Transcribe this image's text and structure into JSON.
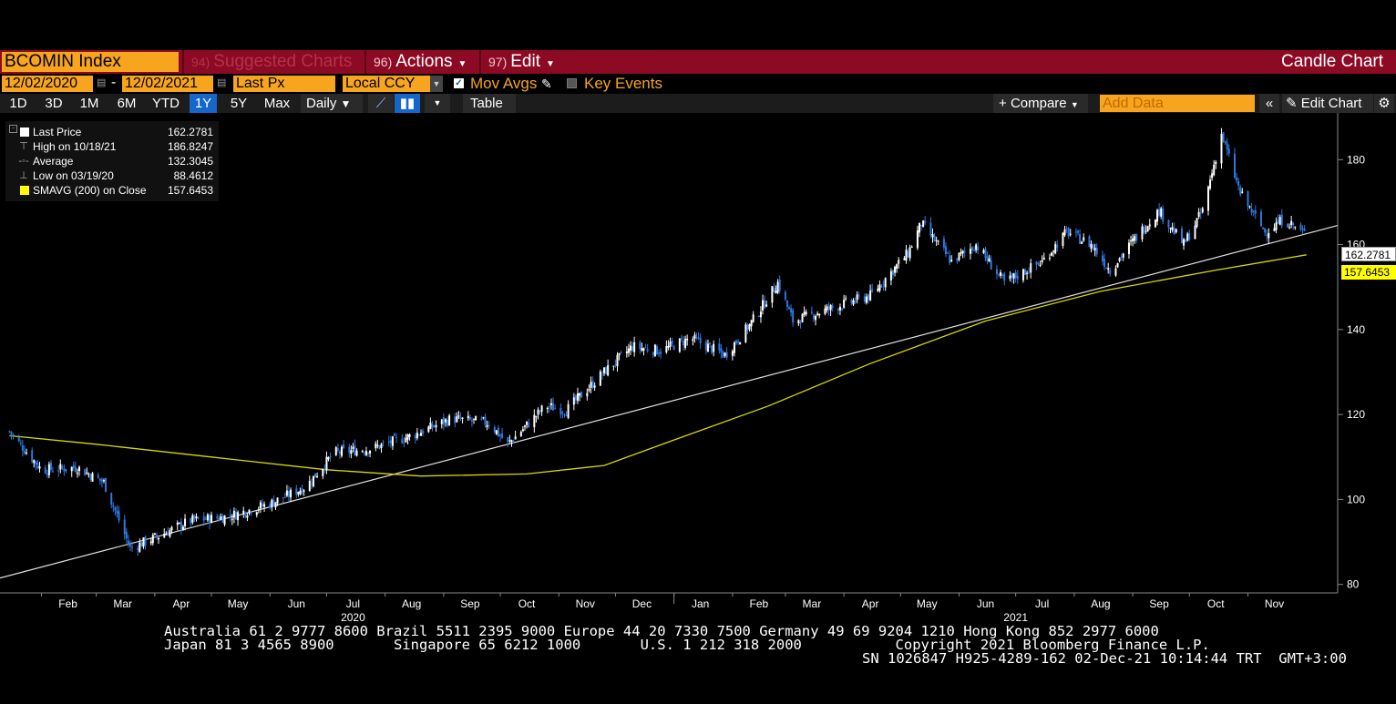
{
  "title_bar": {
    "ticker": "BCOMIN Index",
    "suggested": {
      "num": "94)",
      "label": "Suggested Charts"
    },
    "actions": {
      "num": "96)",
      "label": "Actions"
    },
    "edit": {
      "num": "97)",
      "label": "Edit"
    },
    "chart_type": "Candle Chart"
  },
  "controls": {
    "start_date": "12/02/2020",
    "date_sep": "-",
    "end_date": "12/02/2021",
    "price_field": "Last Px",
    "currency": "Local CCY",
    "mov_avgs_label": "Mov Avgs",
    "mov_avgs_checked": true,
    "key_events_label": "Key Events",
    "key_events_checked": false
  },
  "toolbar": {
    "periods": [
      "1D",
      "3D",
      "1M",
      "6M",
      "YTD",
      "1Y",
      "5Y",
      "Max"
    ],
    "active_period": "1Y",
    "frequency": "Daily",
    "table_label": "Table",
    "compare_label": "Compare",
    "add_data_placeholder": "Add Data",
    "edit_chart_label": "Edit Chart"
  },
  "legend": [
    {
      "label": "Last Price",
      "value": "162.2781",
      "color": "#ffffff"
    },
    {
      "label": "High on 10/18/21",
      "value": "186.8247",
      "symbol": "⊤"
    },
    {
      "label": "Average",
      "value": "132.3045",
      "symbol": "-◦-"
    },
    {
      "label": "Low on 03/19/20",
      "value": "88.4612",
      "symbol": "⊥"
    },
    {
      "label": "SMAVG (200)  on Close",
      "value": "157.6453",
      "color": "#ffff00"
    }
  ],
  "price_tags": {
    "last": "162.2781",
    "sma": "157.6453"
  },
  "colors": {
    "title_bar": "#8c0a23",
    "orange": "#f7a41f",
    "active_blue": "#1567c9",
    "candle_up": "#ffffff",
    "candle_down": "#2f78e0",
    "sma": "#d9d900"
  },
  "chart_data": {
    "type": "candlestick",
    "y_ticks": [
      80,
      100,
      120,
      140,
      160,
      180
    ],
    "ylim": [
      78,
      191
    ],
    "x_months": [
      "Feb",
      "Mar",
      "Apr",
      "May",
      "Jun",
      "Jul",
      "Aug",
      "Sep",
      "Oct",
      "Nov",
      "Dec",
      "Jan",
      "Feb",
      "Mar",
      "Apr",
      "May",
      "Jun",
      "Jul",
      "Aug",
      "Sep",
      "Oct",
      "Nov"
    ],
    "x_years": [
      "2020",
      "2021"
    ],
    "x_year_under": [
      "Jul",
      "Jul"
    ],
    "close_series": [
      {
        "date": "2020-01-15",
        "value": 116
      },
      {
        "date": "2020-02-01",
        "value": 107
      },
      {
        "date": "2020-02-20",
        "value": 107.5
      },
      {
        "date": "2020-03-05",
        "value": 104
      },
      {
        "date": "2020-03-19",
        "value": 88.5
      },
      {
        "date": "2020-04-01",
        "value": 91
      },
      {
        "date": "2020-04-20",
        "value": 95
      },
      {
        "date": "2020-05-10",
        "value": 96
      },
      {
        "date": "2020-06-01",
        "value": 99
      },
      {
        "date": "2020-06-20",
        "value": 103
      },
      {
        "date": "2020-07-05",
        "value": 111
      },
      {
        "date": "2020-07-25",
        "value": 112
      },
      {
        "date": "2020-08-15",
        "value": 115
      },
      {
        "date": "2020-09-05",
        "value": 119
      },
      {
        "date": "2020-09-25",
        "value": 118
      },
      {
        "date": "2020-10-05",
        "value": 113
      },
      {
        "date": "2020-10-25",
        "value": 122
      },
      {
        "date": "2020-11-05",
        "value": 121
      },
      {
        "date": "2020-11-25",
        "value": 130
      },
      {
        "date": "2020-12-10",
        "value": 136
      },
      {
        "date": "2020-12-25",
        "value": 135
      },
      {
        "date": "2021-01-10",
        "value": 138
      },
      {
        "date": "2021-01-28",
        "value": 134
      },
      {
        "date": "2021-02-10",
        "value": 141
      },
      {
        "date": "2021-02-25",
        "value": 151
      },
      {
        "date": "2021-03-05",
        "value": 142
      },
      {
        "date": "2021-03-25",
        "value": 145
      },
      {
        "date": "2021-04-15",
        "value": 148
      },
      {
        "date": "2021-05-05",
        "value": 158
      },
      {
        "date": "2021-05-12",
        "value": 165
      },
      {
        "date": "2021-05-28",
        "value": 156
      },
      {
        "date": "2021-06-10",
        "value": 160
      },
      {
        "date": "2021-06-25",
        "value": 151
      },
      {
        "date": "2021-07-15",
        "value": 156
      },
      {
        "date": "2021-07-28",
        "value": 163
      },
      {
        "date": "2021-08-10",
        "value": 160
      },
      {
        "date": "2021-08-20",
        "value": 154
      },
      {
        "date": "2021-09-05",
        "value": 163
      },
      {
        "date": "2021-09-15",
        "value": 168
      },
      {
        "date": "2021-09-28",
        "value": 160
      },
      {
        "date": "2021-10-08",
        "value": 168
      },
      {
        "date": "2021-10-18",
        "value": 186
      },
      {
        "date": "2021-10-28",
        "value": 172
      },
      {
        "date": "2021-11-10",
        "value": 163
      },
      {
        "date": "2021-11-20",
        "value": 166
      },
      {
        "date": "2021-12-02",
        "value": 162.3
      }
    ],
    "sma_200": [
      {
        "date": "2020-01-15",
        "value": 115
      },
      {
        "date": "2020-03-01",
        "value": 113
      },
      {
        "date": "2020-05-01",
        "value": 110
      },
      {
        "date": "2020-07-01",
        "value": 107
      },
      {
        "date": "2020-08-20",
        "value": 105.5
      },
      {
        "date": "2020-10-15",
        "value": 106
      },
      {
        "date": "2020-11-25",
        "value": 108
      },
      {
        "date": "2021-01-01",
        "value": 114
      },
      {
        "date": "2021-02-20",
        "value": 122
      },
      {
        "date": "2021-04-15",
        "value": 132
      },
      {
        "date": "2021-06-15",
        "value": 142
      },
      {
        "date": "2021-08-15",
        "value": 149
      },
      {
        "date": "2021-10-15",
        "value": 154
      },
      {
        "date": "2021-12-02",
        "value": 157.6
      }
    ]
  },
  "footer": {
    "line1": "Australia 61 2 9777 8600 Brazil 5511 2395 9000 Europe 44 20 7330 7500 Germany 49 69 9204 1210 Hong Kong 852 2977 6000",
    "line2": "Japan 81 3 4565 8900       Singapore 65 6212 1000       U.S. 1 212 318 2000           Copyright 2021 Bloomberg Finance L.P.",
    "line3": "SN 1026847 H925-4289-162 02-Dec-21 10:14:44 TRT  GMT+3:00"
  }
}
